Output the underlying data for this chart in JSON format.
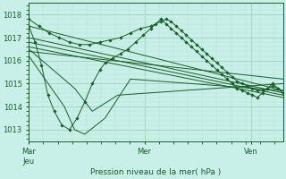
{
  "xlabel": "Pression niveau de la mer( hPa )",
  "bg_color": "#c8f0e8",
  "grid_major_color": "#9fcfbf",
  "grid_minor_color": "#b0ddd0",
  "line_color": "#1a5c2a",
  "ylim": [
    1012.5,
    1018.5
  ],
  "yticks": [
    1013,
    1014,
    1015,
    1016,
    1017,
    1018
  ],
  "xtick_positions": [
    0.0,
    0.455,
    0.875
  ],
  "xtick_labels": [
    "Mar\nJeu",
    "Mer",
    "Ven"
  ],
  "series": [
    {
      "x": [
        0.0,
        0.025,
        0.05,
        0.075,
        0.1,
        0.13,
        0.16,
        0.19,
        0.22,
        0.25,
        0.28,
        0.3,
        0.33,
        0.36,
        0.39,
        0.42,
        0.45,
        0.48,
        0.5,
        0.52,
        0.54,
        0.56,
        0.58,
        0.6,
        0.62,
        0.64,
        0.66,
        0.68,
        0.7,
        0.72,
        0.74,
        0.76,
        0.78,
        0.8,
        0.82,
        0.84,
        0.86,
        0.88,
        0.9,
        0.92,
        0.94,
        0.96,
        0.98,
        1.0
      ],
      "y": [
        1017.5,
        1016.8,
        1015.8,
        1014.5,
        1013.8,
        1013.2,
        1013.0,
        1013.5,
        1014.2,
        1015.0,
        1015.6,
        1015.9,
        1016.1,
        1016.3,
        1016.5,
        1016.8,
        1017.1,
        1017.4,
        1017.6,
        1017.8,
        1017.6,
        1017.4,
        1017.2,
        1017.0,
        1016.8,
        1016.6,
        1016.4,
        1016.2,
        1016.0,
        1015.8,
        1015.6,
        1015.4,
        1015.2,
        1015.0,
        1014.8,
        1014.7,
        1014.6,
        1014.5,
        1014.4,
        1014.6,
        1014.8,
        1015.0,
        1014.8,
        1014.6
      ],
      "has_markers": true
    },
    {
      "x": [
        0.0,
        1.0
      ],
      "y": [
        1017.5,
        1014.7
      ],
      "has_markers": false
    },
    {
      "x": [
        0.0,
        1.0
      ],
      "y": [
        1017.0,
        1014.6
      ],
      "has_markers": false
    },
    {
      "x": [
        0.0,
        1.0
      ],
      "y": [
        1016.8,
        1014.5
      ],
      "has_markers": false
    },
    {
      "x": [
        0.0,
        1.0
      ],
      "y": [
        1016.6,
        1014.4
      ],
      "has_markers": false
    },
    {
      "x": [
        0.0,
        1.0
      ],
      "y": [
        1016.4,
        1015.2
      ],
      "has_markers": false
    },
    {
      "x": [
        0.0,
        0.18,
        0.25,
        0.35,
        1.0
      ],
      "y": [
        1016.5,
        1014.8,
        1013.8,
        1014.5,
        1015.0
      ],
      "has_markers": false
    },
    {
      "x": [
        0.0,
        0.14,
        0.18,
        0.22,
        0.3,
        0.4,
        1.0
      ],
      "y": [
        1016.2,
        1014.0,
        1013.0,
        1012.8,
        1013.5,
        1015.2,
        1014.7
      ],
      "has_markers": false
    },
    {
      "x": [
        0.0,
        0.04,
        0.08,
        0.12,
        0.16,
        0.2,
        0.24,
        0.28,
        0.32,
        0.36,
        0.4,
        0.44,
        0.48,
        0.52,
        0.54,
        0.56,
        0.58,
        0.6,
        0.62,
        0.64,
        0.66,
        0.68,
        0.7,
        0.72,
        0.74,
        0.76,
        0.78,
        0.8,
        0.82,
        0.84,
        0.86,
        0.88,
        0.9,
        0.92,
        0.94,
        0.96,
        0.98,
        1.0
      ],
      "y": [
        1017.8,
        1017.5,
        1017.2,
        1017.0,
        1016.8,
        1016.7,
        1016.7,
        1016.8,
        1016.9,
        1017.0,
        1017.2,
        1017.4,
        1017.5,
        1017.7,
        1017.8,
        1017.7,
        1017.5,
        1017.3,
        1017.1,
        1016.9,
        1016.7,
        1016.5,
        1016.3,
        1016.1,
        1015.9,
        1015.7,
        1015.5,
        1015.3,
        1015.1,
        1015.0,
        1014.9,
        1014.8,
        1014.7,
        1014.7,
        1014.8,
        1014.9,
        1014.8,
        1014.6
      ],
      "has_markers": true
    }
  ]
}
